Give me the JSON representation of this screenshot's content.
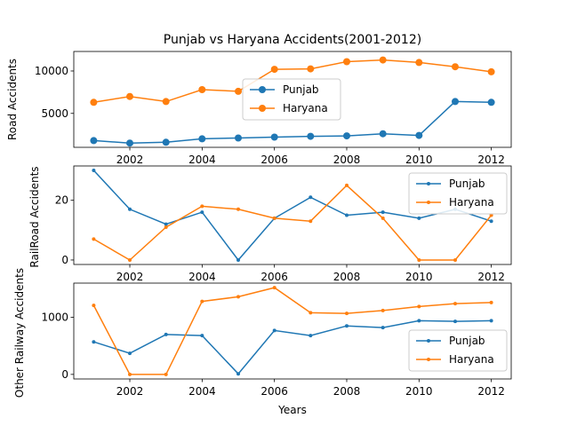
{
  "chart_data": [
    {
      "type": "line",
      "title": "Punjab vs Haryana Accidents(2001-2012)",
      "xlabel": "",
      "ylabel": "Road Accidents",
      "x": [
        2001,
        2002,
        2003,
        2004,
        2005,
        2006,
        2007,
        2008,
        2009,
        2010,
        2011,
        2012
      ],
      "xlim": [
        2000.45,
        2012.55
      ],
      "ylim": [
        1000,
        12300
      ],
      "xticks": [
        2002,
        2004,
        2006,
        2008,
        2010,
        2012
      ],
      "yticks": [
        5000,
        10000
      ],
      "legend": "center",
      "marker": "large",
      "series": [
        {
          "name": "Punjab",
          "color": "#1f77b4",
          "values": [
            1800,
            1500,
            1600,
            2000,
            2100,
            2200,
            2300,
            2350,
            2600,
            2400,
            6400,
            6300
          ]
        },
        {
          "name": "Haryana",
          "color": "#ff7f0e",
          "values": [
            6300,
            7000,
            6400,
            7800,
            7600,
            10200,
            10250,
            11100,
            11300,
            11000,
            10500,
            9900
          ]
        }
      ]
    },
    {
      "type": "line",
      "title": "",
      "xlabel": "",
      "ylabel": "RailRoad Accidents",
      "x": [
        2001,
        2002,
        2003,
        2004,
        2005,
        2006,
        2007,
        2008,
        2009,
        2010,
        2011,
        2012
      ],
      "xlim": [
        2000.45,
        2012.55
      ],
      "ylim": [
        -1.5,
        31.5
      ],
      "xticks": [
        2002,
        2004,
        2006,
        2008,
        2010,
        2012
      ],
      "yticks": [
        0,
        20
      ],
      "legend": "upper-right",
      "marker": "small",
      "series": [
        {
          "name": "Punjab",
          "color": "#1f77b4",
          "values": [
            30,
            17,
            12,
            16,
            0,
            14,
            21,
            15,
            16,
            14,
            17,
            13
          ]
        },
        {
          "name": "Haryana",
          "color": "#ff7f0e",
          "values": [
            7,
            0,
            11,
            18,
            17,
            14,
            13,
            25,
            14,
            0,
            0,
            15
          ]
        }
      ]
    },
    {
      "type": "line",
      "title": "",
      "xlabel": "Years",
      "ylabel": "Other Railway Accidents",
      "x": [
        2001,
        2002,
        2003,
        2004,
        2005,
        2006,
        2007,
        2008,
        2009,
        2010,
        2011,
        2012
      ],
      "xlim": [
        2000.45,
        2012.55
      ],
      "ylim": [
        -80,
        1600
      ],
      "xticks": [
        2002,
        2004,
        2006,
        2008,
        2010,
        2012
      ],
      "yticks": [
        0,
        1000
      ],
      "legend": "lower-right",
      "marker": "small",
      "series": [
        {
          "name": "Punjab",
          "color": "#1f77b4",
          "values": [
            570,
            370,
            700,
            680,
            10,
            770,
            680,
            850,
            820,
            940,
            930,
            940
          ]
        },
        {
          "name": "Haryana",
          "color": "#ff7f0e",
          "values": [
            1210,
            0,
            0,
            1280,
            1360,
            1520,
            1080,
            1070,
            1120,
            1190,
            1240,
            1260
          ]
        }
      ]
    }
  ]
}
